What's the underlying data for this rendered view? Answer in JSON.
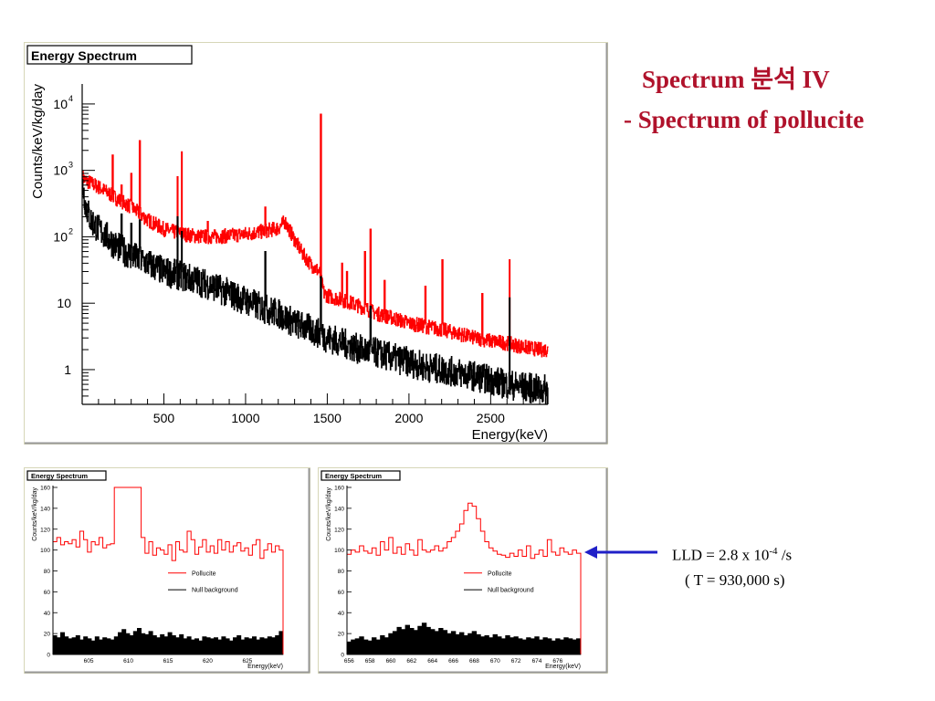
{
  "slide": {
    "title": "Spectrum 분석 IV",
    "subtitle": "- Spectrum of pollucite",
    "lld_prefix": "LLD = 2.8 x 10",
    "lld_exp": "-4",
    "lld_suffix": " /s",
    "exposure": "( T = 930,000 s)",
    "accent_color": "#b0122b",
    "arrow_color": "#2020c8"
  },
  "chart_data": [
    {
      "type": "line",
      "title": "Energy Spectrum",
      "xlabel": "Energy(keV)",
      "ylabel": "Counts/keV/kg/day",
      "xlim": [
        0,
        2850
      ],
      "ylim": [
        0.3,
        20000
      ],
      "yscale": "log",
      "x_ticks": [
        500,
        1000,
        1500,
        2000,
        2500
      ],
      "y_ticks": [
        {
          "value": 10000,
          "base": "10",
          "exp": "4"
        },
        {
          "value": 1000,
          "base": "10",
          "exp": "3"
        },
        {
          "value": 100,
          "base": "10",
          "exp": "2"
        },
        {
          "value": 10,
          "base": "10",
          "exp": ""
        },
        {
          "value": 1,
          "base": "1",
          "exp": ""
        }
      ],
      "series": [
        {
          "color": "#ff0000",
          "x": [
            0,
            20,
            50,
            100,
            150,
            200,
            300,
            400,
            500,
            600,
            700,
            800,
            900,
            1000,
            1100,
            1200,
            1240,
            1300,
            1350,
            1400,
            1450,
            1480,
            1500,
            1600,
            1700,
            1800,
            1900,
            2000,
            2100,
            2200,
            2300,
            2400,
            2500,
            2600,
            2700,
            2800,
            2850
          ],
          "y": [
            800,
            700,
            650,
            560,
            470,
            390,
            280,
            180,
            130,
            112,
            102,
            100,
            104,
            110,
            120,
            135,
            170,
            90,
            55,
            38,
            30,
            14,
            13,
            11,
            9,
            7,
            6,
            5,
            4.5,
            4,
            3.5,
            3,
            2.7,
            2.5,
            2.2,
            2,
            2
          ],
          "peaks": [
            {
              "x": 186,
              "y": 1700
            },
            {
              "x": 240,
              "y": 600
            },
            {
              "x": 300,
              "y": 900
            },
            {
              "x": 352,
              "y": 2800
            },
            {
              "x": 583,
              "y": 800
            },
            {
              "x": 609,
              "y": 1900
            },
            {
              "x": 768,
              "y": 170
            },
            {
              "x": 1120,
              "y": 280
            },
            {
              "x": 1460,
              "y": 7000
            },
            {
              "x": 1590,
              "y": 40
            },
            {
              "x": 1620,
              "y": 30
            },
            {
              "x": 1730,
              "y": 60
            },
            {
              "x": 1764,
              "y": 130
            },
            {
              "x": 1850,
              "y": 22
            },
            {
              "x": 2100,
              "y": 18
            },
            {
              "x": 2204,
              "y": 45
            },
            {
              "x": 2448,
              "y": 14
            },
            {
              "x": 2615,
              "y": 45
            }
          ]
        },
        {
          "color": "#000000",
          "x": [
            0,
            20,
            50,
            100,
            150,
            200,
            300,
            400,
            500,
            600,
            700,
            800,
            900,
            1000,
            1100,
            1200,
            1300,
            1400,
            1500,
            1600,
            1700,
            1800,
            1900,
            2000,
            2100,
            2200,
            2300,
            2400,
            2500,
            2600,
            2700,
            2800,
            2850
          ],
          "y": [
            700,
            300,
            180,
            130,
            100,
            75,
            52,
            40,
            30,
            26,
            22,
            18,
            14,
            11,
            8.5,
            7,
            5,
            4,
            3,
            2.5,
            2,
            1.8,
            1.5,
            1.3,
            1.1,
            1,
            0.9,
            0.8,
            0.7,
            0.6,
            0.55,
            0.5,
            0.5
          ],
          "peaks": [
            {
              "x": 240,
              "y": 220
            },
            {
              "x": 300,
              "y": 160
            },
            {
              "x": 352,
              "y": 180
            },
            {
              "x": 583,
              "y": 200
            },
            {
              "x": 609,
              "y": 120
            },
            {
              "x": 1120,
              "y": 60
            },
            {
              "x": 1460,
              "y": 25
            },
            {
              "x": 1764,
              "y": 9
            },
            {
              "x": 2615,
              "y": 12
            }
          ]
        }
      ]
    },
    {
      "type": "line",
      "title": "Energy Spectrum",
      "xlabel": "Energy(keV)",
      "ylabel": "Counts/keV/kg/day",
      "xlim": [
        600.5,
        629.5
      ],
      "ylim": [
        0,
        160
      ],
      "x_ticks": [
        605,
        610,
        615,
        620,
        625
      ],
      "y_ticks": [
        0,
        20,
        40,
        60,
        80,
        100,
        120,
        140,
        160
      ],
      "legend": {
        "position": "center-right"
      },
      "series": [
        {
          "name": "Pollucite",
          "color": "#ff0000",
          "values": [
            108,
            112,
            105,
            108,
            106,
            110,
            103,
            118,
            110,
            98,
            108,
            105,
            112,
            102,
            105,
            106,
            160,
            160,
            160,
            160,
            160,
            160,
            160,
            112,
            97,
            108,
            95,
            102,
            100,
            96,
            105,
            90,
            108,
            100,
            98,
            118,
            110,
            96,
            103,
            110,
            98,
            104,
            97,
            110,
            100,
            108,
            98,
            104,
            107,
            99,
            102,
            95,
            105,
            110,
            92,
            100,
            106,
            98,
            104,
            100
          ]
        },
        {
          "name": "Null background",
          "color": "#000000",
          "values": [
            18,
            16,
            21,
            17,
            15,
            16,
            18,
            14,
            17,
            15,
            13,
            17,
            14,
            16,
            15,
            14,
            17,
            21,
            24,
            20,
            18,
            22,
            25,
            20,
            19,
            22,
            18,
            16,
            19,
            17,
            21,
            18,
            16,
            19,
            15,
            17,
            14,
            15,
            13,
            17,
            16,
            15,
            16,
            14,
            17,
            15,
            13,
            16,
            18,
            14,
            16,
            15,
            17,
            14,
            16,
            15,
            17,
            16,
            18,
            22
          ]
        }
      ]
    },
    {
      "type": "line",
      "title": "Energy Spectrum",
      "xlabel": "Energy(keV)",
      "ylabel": "Counts/keV/kg/day",
      "xlim": [
        655.8,
        678.2
      ],
      "ylim": [
        0,
        160
      ],
      "x_ticks": [
        656,
        658,
        660,
        662,
        664,
        666,
        668,
        670,
        672,
        674,
        676
      ],
      "y_ticks": [
        0,
        20,
        40,
        60,
        80,
        100,
        120,
        140,
        160
      ],
      "legend": {
        "position": "center-right"
      },
      "series": [
        {
          "name": "Pollucite",
          "color": "#ff0000",
          "values": [
            96,
            100,
            98,
            104,
            99,
            97,
            102,
            95,
            108,
            100,
            112,
            97,
            103,
            96,
            106,
            100,
            95,
            110,
            100,
            98,
            100,
            104,
            99,
            102,
            108,
            112,
            118,
            125,
            138,
            145,
            142,
            130,
            118,
            108,
            102,
            99,
            96,
            95,
            93,
            97,
            94,
            100,
            94,
            104,
            92,
            96,
            100,
            94,
            110,
            98,
            95,
            102,
            98,
            96,
            100,
            97
          ]
        },
        {
          "name": "Null background",
          "color": "#000000",
          "values": [
            12,
            14,
            15,
            17,
            14,
            13,
            16,
            14,
            18,
            16,
            20,
            22,
            26,
            24,
            28,
            25,
            23,
            27,
            30,
            26,
            24,
            22,
            25,
            23,
            20,
            22,
            19,
            21,
            18,
            20,
            22,
            19,
            17,
            18,
            16,
            19,
            17,
            15,
            18,
            16,
            17,
            15,
            14,
            16,
            15,
            17,
            14,
            16,
            15,
            13,
            15,
            14,
            16,
            15,
            14,
            15
          ]
        }
      ]
    }
  ]
}
